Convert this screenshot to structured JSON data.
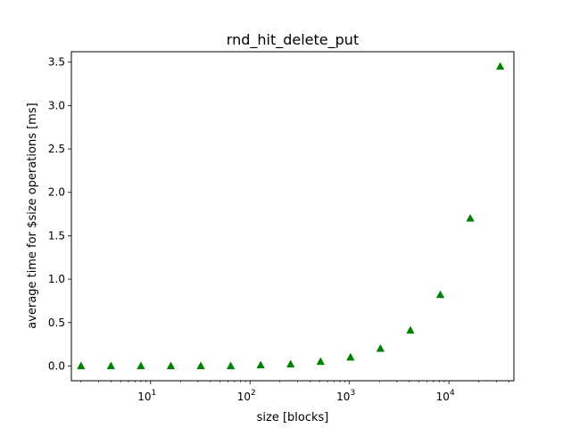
{
  "chart_data": {
    "type": "scatter",
    "title": "rnd_hit_delete_put",
    "xlabel": "size [blocks]",
    "ylabel": "average time for $size operations [ms]",
    "xscale": "log",
    "xlim": [
      1.6,
      45000
    ],
    "ylim": [
      -0.17,
      3.62
    ],
    "x_ticks": [
      {
        "value": 10,
        "base": "10",
        "exp": "1"
      },
      {
        "value": 100,
        "base": "10",
        "exp": "2"
      },
      {
        "value": 1000,
        "base": "10",
        "exp": "3"
      },
      {
        "value": 10000,
        "base": "10",
        "exp": "4"
      }
    ],
    "y_ticks": [
      "0.0",
      "0.5",
      "1.0",
      "1.5",
      "2.0",
      "2.5",
      "3.0",
      "3.5"
    ],
    "marker": "triangle-up",
    "color": "#008000",
    "grid": false,
    "series": [
      {
        "x": [
          2,
          4,
          8,
          16,
          32,
          64,
          128,
          256,
          512,
          1024,
          2048,
          4096,
          8192,
          16384,
          32768
        ],
        "y": [
          0.0,
          0.0,
          0.0,
          0.0,
          0.0,
          0.0,
          0.01,
          0.02,
          0.05,
          0.1,
          0.2,
          0.41,
          0.82,
          1.7,
          3.45
        ]
      }
    ]
  }
}
